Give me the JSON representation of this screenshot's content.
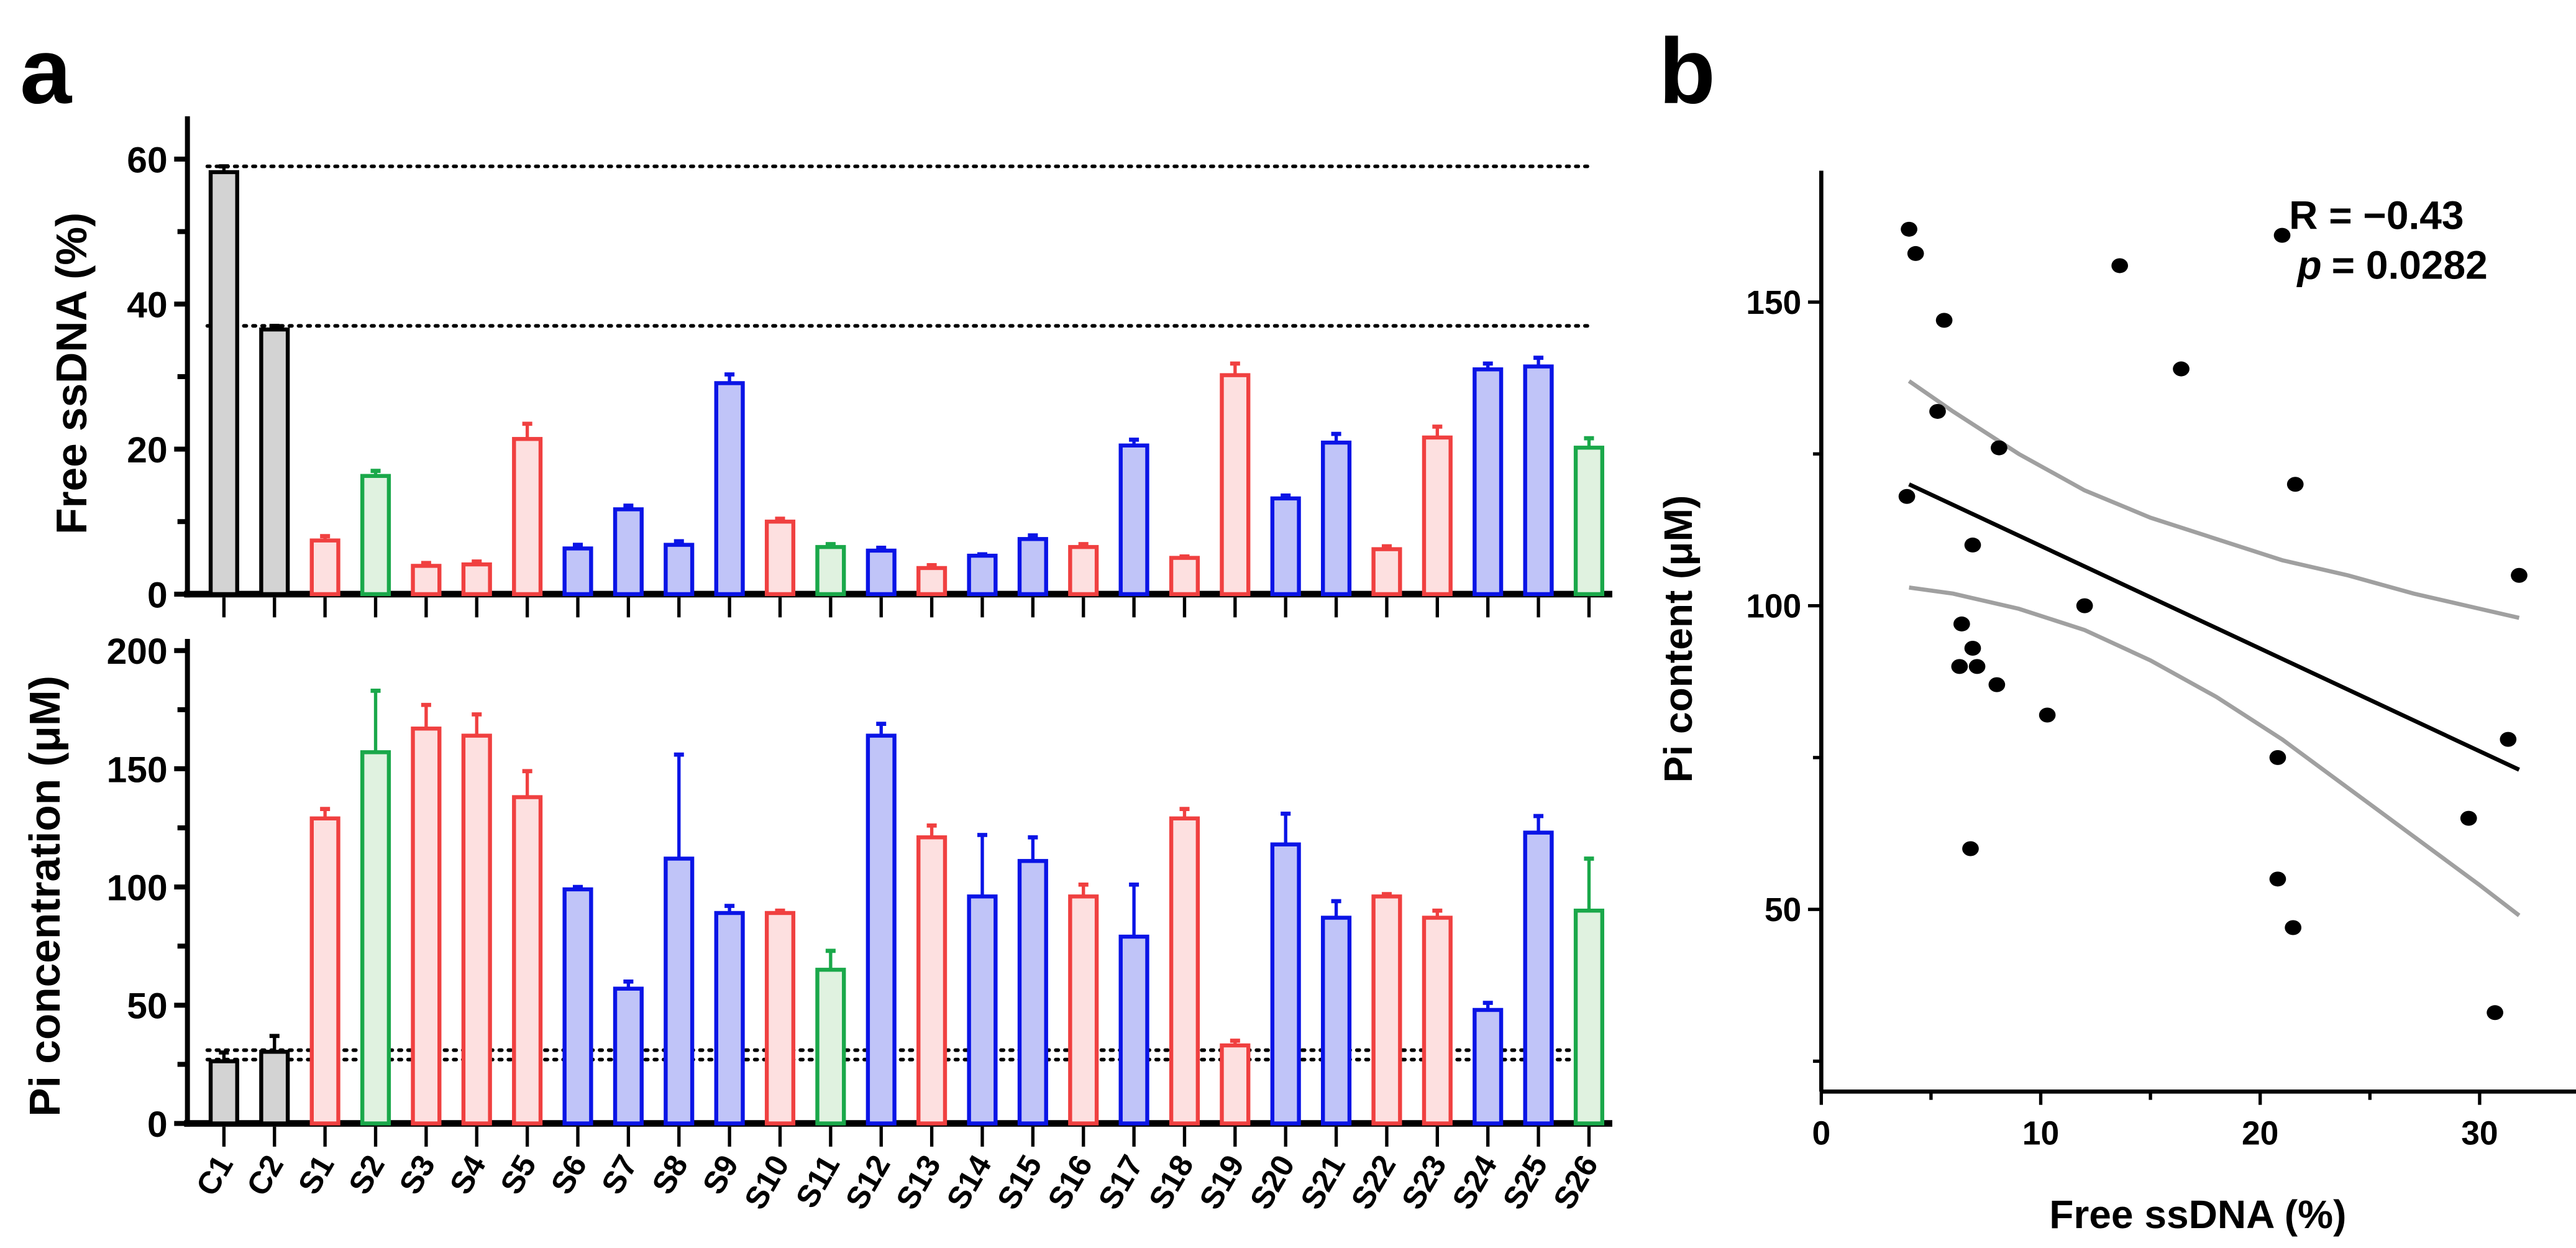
{
  "colors": {
    "control": "#000000",
    "control_fill": "#d3d3d3",
    "red": "#f04040",
    "red_fill": "#fde0e0",
    "green": "#1aa84a",
    "green_fill": "#e0f2e0",
    "blue": "#0a14e6",
    "blue_fill": "#c0c4f8",
    "ci": "#a0a0a0"
  },
  "panel_labels": {
    "a": "a",
    "b": "b"
  },
  "chart_data": [
    {
      "type": "bar",
      "panel": "a-top",
      "ylabel": "Free ssDNA (%)",
      "ylim": [
        0,
        65
      ],
      "yticks": [
        0,
        20,
        40,
        60
      ],
      "reference_lines": [
        59,
        37
      ],
      "categories": [
        "C1",
        "C2",
        "S1",
        "S2",
        "S3",
        "S4",
        "S5",
        "S6",
        "S7",
        "S8",
        "S9",
        "S10",
        "S11",
        "S12",
        "S13",
        "S14",
        "S15",
        "S16",
        "S17",
        "S18",
        "S19",
        "S20",
        "S21",
        "S22",
        "S23",
        "S24",
        "S25",
        "S26"
      ],
      "groups": [
        "control",
        "control",
        "red",
        "green",
        "red",
        "red",
        "red",
        "blue",
        "blue",
        "blue",
        "blue",
        "red",
        "green",
        "blue",
        "red",
        "blue",
        "blue",
        "red",
        "blue",
        "red",
        "red",
        "blue",
        "blue",
        "red",
        "red",
        "blue",
        "blue",
        "green"
      ],
      "values": [
        58.2,
        36.5,
        7.4,
        16.3,
        3.9,
        4.1,
        21.4,
        6.3,
        11.7,
        6.8,
        29.1,
        10,
        6.5,
        6,
        3.6,
        5.3,
        7.6,
        6.5,
        20.5,
        5,
        30.2,
        13.2,
        20.9,
        6.2,
        21.6,
        31,
        31.4,
        20.2
      ],
      "errors": [
        0.8,
        0.5,
        0.6,
        0.7,
        0.4,
        0.4,
        2.1,
        0.5,
        0.5,
        0.5,
        1.2,
        0.4,
        0.4,
        0.4,
        0.4,
        0.2,
        0.5,
        0.4,
        0.8,
        0.2,
        1.6,
        0.4,
        1.2,
        0.4,
        1.5,
        0.8,
        1.2,
        1.3
      ]
    },
    {
      "type": "bar",
      "panel": "a-bottom",
      "ylabel": "Pi concentration (μM)",
      "ylim": [
        0,
        200
      ],
      "yticks": [
        0,
        50,
        100,
        150,
        200
      ],
      "reference_lines": [
        31,
        27
      ],
      "categories": [
        "C1",
        "C2",
        "S1",
        "S2",
        "S3",
        "S4",
        "S5",
        "S6",
        "S7",
        "S8",
        "S9",
        "S10",
        "S11",
        "S12",
        "S13",
        "S14",
        "S15",
        "S16",
        "S17",
        "S18",
        "S19",
        "S20",
        "S21",
        "S22",
        "S23",
        "S24",
        "S25",
        "S26"
      ],
      "groups": [
        "control",
        "control",
        "red",
        "green",
        "red",
        "red",
        "red",
        "blue",
        "blue",
        "blue",
        "blue",
        "red",
        "green",
        "blue",
        "red",
        "blue",
        "blue",
        "red",
        "blue",
        "red",
        "red",
        "blue",
        "blue",
        "red",
        "red",
        "blue",
        "blue",
        "green"
      ],
      "values": [
        26.3,
        30.3,
        129,
        157,
        167,
        164,
        138,
        99,
        57,
        112,
        89,
        89,
        65,
        164,
        121,
        96,
        111,
        96,
        79,
        129,
        33,
        118,
        87,
        96,
        87,
        48,
        123,
        90
      ],
      "errors": [
        3.7,
        6.7,
        4,
        26,
        10,
        9,
        11,
        1,
        3,
        44,
        3,
        1,
        8,
        5,
        5,
        26,
        10,
        5,
        22,
        4,
        2,
        13,
        7,
        1,
        3,
        3,
        7,
        22
      ]
    },
    {
      "type": "scatter",
      "panel": "b",
      "xlabel": "Free ssDNA (%)",
      "ylabel": "Pi content (μM)",
      "xlim": [
        0,
        35
      ],
      "ylim": [
        20,
        170
      ],
      "xticks": [
        0,
        10,
        20,
        30
      ],
      "yticks": [
        50,
        100,
        150
      ],
      "annotation": {
        "r": "R = −0.43",
        "p_label": "p",
        "p_value": "= 0.0282"
      },
      "points": [
        [
          4,
          162
        ],
        [
          4.3,
          158
        ],
        [
          5.6,
          147
        ],
        [
          5.3,
          132
        ],
        [
          8.1,
          126
        ],
        [
          3.9,
          118
        ],
        [
          6.9,
          110
        ],
        [
          12,
          100
        ],
        [
          6.4,
          97
        ],
        [
          6.9,
          93
        ],
        [
          6.3,
          90
        ],
        [
          7.1,
          90
        ],
        [
          8,
          87
        ],
        [
          10.3,
          82
        ],
        [
          20.8,
          75
        ],
        [
          6.8,
          60
        ],
        [
          13.6,
          156
        ],
        [
          16.4,
          139
        ],
        [
          21,
          161
        ],
        [
          21.6,
          120
        ],
        [
          31.8,
          105
        ],
        [
          31.3,
          78
        ],
        [
          29.5,
          65
        ],
        [
          20.8,
          55
        ],
        [
          21.5,
          47
        ],
        [
          30.7,
          33
        ]
      ],
      "regression": [
        [
          4,
          120
        ],
        [
          31.8,
          73
        ]
      ],
      "ci_upper": [
        [
          4,
          137
        ],
        [
          6,
          132
        ],
        [
          9,
          125
        ],
        [
          12,
          119
        ],
        [
          15,
          114.5
        ],
        [
          18,
          111
        ],
        [
          21,
          107.5
        ],
        [
          24,
          105
        ],
        [
          27,
          102
        ],
        [
          30,
          99.5
        ],
        [
          31.8,
          98
        ]
      ],
      "ci_lower": [
        [
          4,
          103
        ],
        [
          6,
          102
        ],
        [
          9,
          99.5
        ],
        [
          12,
          96
        ],
        [
          15,
          91
        ],
        [
          18,
          85
        ],
        [
          21,
          78
        ],
        [
          24,
          70
        ],
        [
          27,
          62
        ],
        [
          30,
          54
        ],
        [
          31.8,
          49
        ]
      ]
    }
  ]
}
